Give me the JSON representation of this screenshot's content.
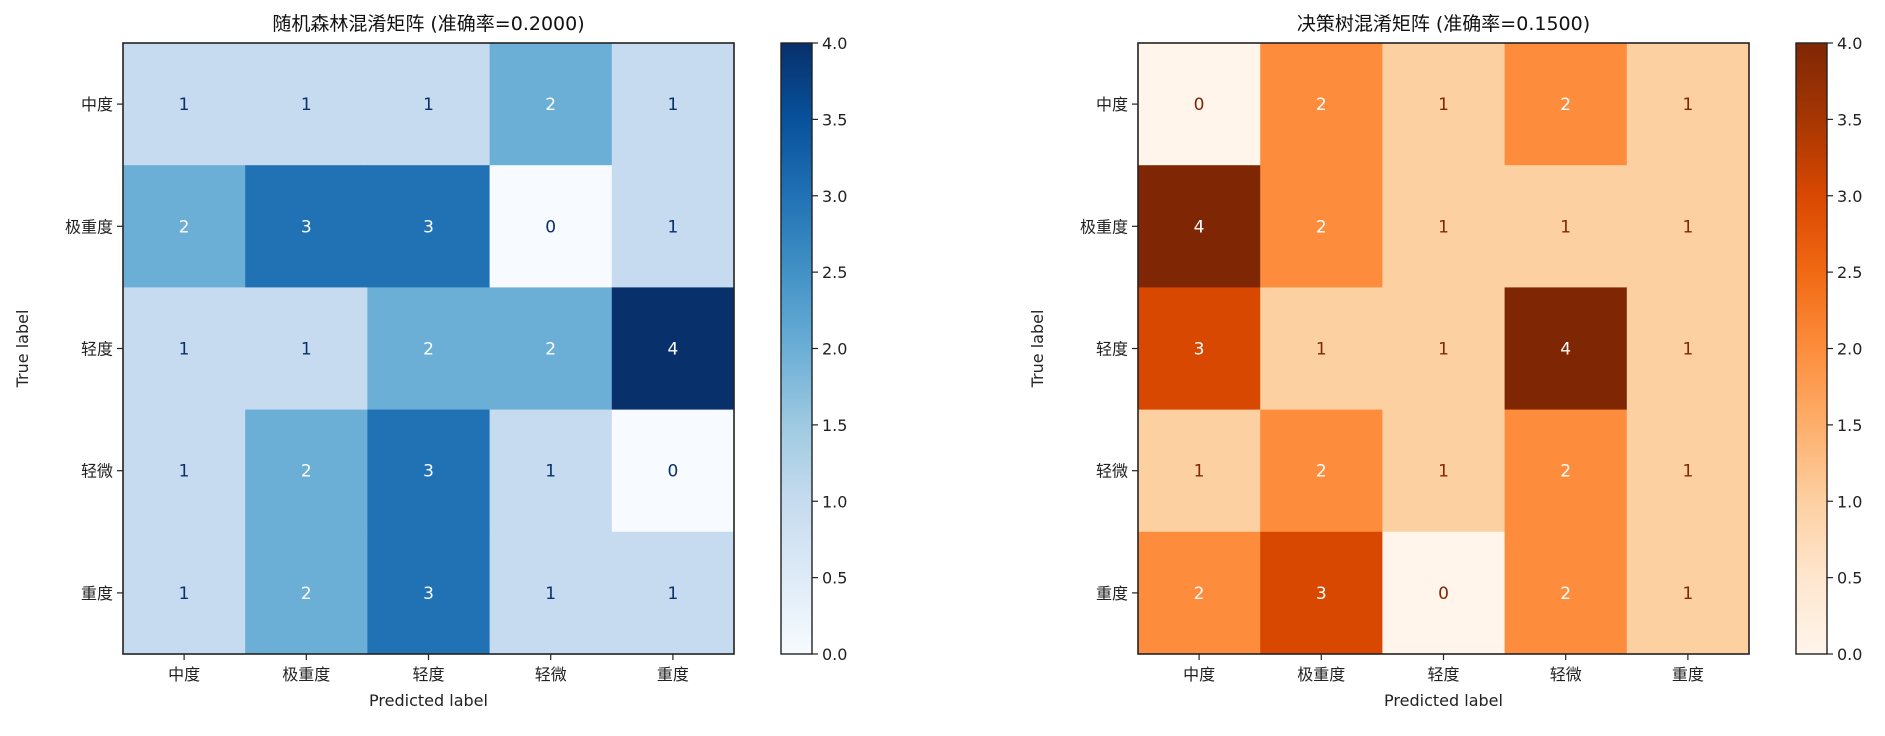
{
  "chart_data": [
    {
      "type": "heatmap",
      "title": "随机森林混淆矩阵 (准确率=0.2000)",
      "xlabel": "Predicted label",
      "ylabel": "True label",
      "x_categories": [
        "中度",
        "极重度",
        "轻度",
        "轻微",
        "重度"
      ],
      "y_categories": [
        "中度",
        "极重度",
        "轻度",
        "轻微",
        "重度"
      ],
      "values": [
        [
          1,
          1,
          1,
          2,
          1
        ],
        [
          2,
          3,
          3,
          0,
          1
        ],
        [
          1,
          1,
          2,
          2,
          4
        ],
        [
          1,
          2,
          3,
          1,
          0
        ],
        [
          1,
          2,
          3,
          1,
          1
        ]
      ],
      "colormap": [
        "#f7fbff",
        "#deebf7",
        "#c6dbef",
        "#9ecae1",
        "#6baed6",
        "#4292c6",
        "#2171b5",
        "#08519c",
        "#08306b"
      ],
      "text_dark": "#08306b",
      "text_light": "#ffffff",
      "colorbar": {
        "range": [
          0,
          4
        ],
        "ticks": [
          "0.0",
          "0.5",
          "1.0",
          "1.5",
          "2.0",
          "2.5",
          "3.0",
          "3.5",
          "4.0"
        ]
      }
    },
    {
      "type": "heatmap",
      "title": "决策树混淆矩阵 (准确率=0.1500)",
      "xlabel": "Predicted label",
      "ylabel": "True label",
      "x_categories": [
        "中度",
        "极重度",
        "轻度",
        "轻微",
        "重度"
      ],
      "y_categories": [
        "中度",
        "极重度",
        "轻度",
        "轻微",
        "重度"
      ],
      "values": [
        [
          0,
          2,
          1,
          2,
          1
        ],
        [
          4,
          2,
          1,
          1,
          1
        ],
        [
          3,
          1,
          1,
          4,
          1
        ],
        [
          1,
          2,
          1,
          2,
          1
        ],
        [
          2,
          3,
          0,
          2,
          1
        ]
      ],
      "colormap": [
        "#fff5eb",
        "#fee6ce",
        "#fdd0a2",
        "#fdae6b",
        "#fd8d3c",
        "#f16913",
        "#d94801",
        "#a63603",
        "#7f2704"
      ],
      "text_dark": "#7f2704",
      "text_light": "#ffffff",
      "colorbar": {
        "range": [
          0,
          4
        ],
        "ticks": [
          "0.0",
          "0.5",
          "1.0",
          "1.5",
          "2.0",
          "2.5",
          "3.0",
          "3.5",
          "4.0"
        ]
      }
    }
  ]
}
